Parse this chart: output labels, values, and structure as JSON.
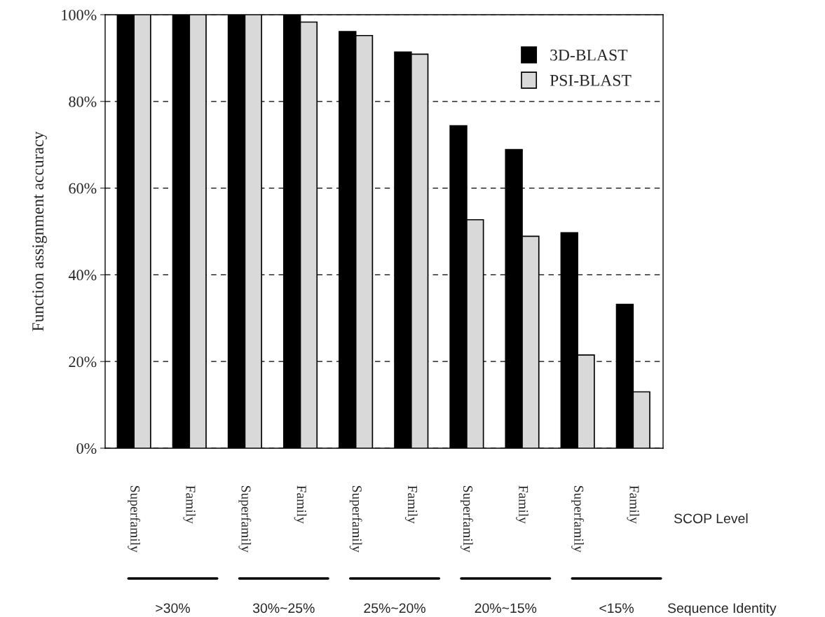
{
  "chart_data": {
    "type": "bar",
    "categories": [
      "Superfamily",
      "Family",
      "Superfamily",
      "Family",
      "Superfamily",
      "Family",
      "Superfamily",
      "Family",
      "Superfamily",
      "Family"
    ],
    "series": [
      {
        "name": "3D-BLAST",
        "color": "#000000",
        "values": [
          100,
          100,
          100,
          100,
          96.1,
          91.4,
          74.4,
          68.9,
          49.7,
          33.2
        ]
      },
      {
        "name": "PSI-BLAST",
        "color": "#d9d9d9",
        "values": [
          100,
          100,
          100,
          98.3,
          95.2,
          90.9,
          52.7,
          48.9,
          21.5,
          13.0
        ]
      }
    ],
    "ylabel": "Function assignment accuracy",
    "ylim": [
      0,
      100
    ],
    "yticks": [
      {
        "value": 0,
        "label": "0%"
      },
      {
        "value": 20,
        "label": "20%"
      },
      {
        "value": 40,
        "label": "40%"
      },
      {
        "value": 60,
        "label": "60%"
      },
      {
        "value": 80,
        "label": "80%"
      },
      {
        "value": 100,
        "label": "100%"
      }
    ],
    "annotations": [
      "SCOP Level",
      ">30%",
      "30%~25%",
      "25%~20%",
      "20%~15%",
      "<15%",
      "Sequence Identity"
    ],
    "grid": "y",
    "legend": "top right"
  }
}
